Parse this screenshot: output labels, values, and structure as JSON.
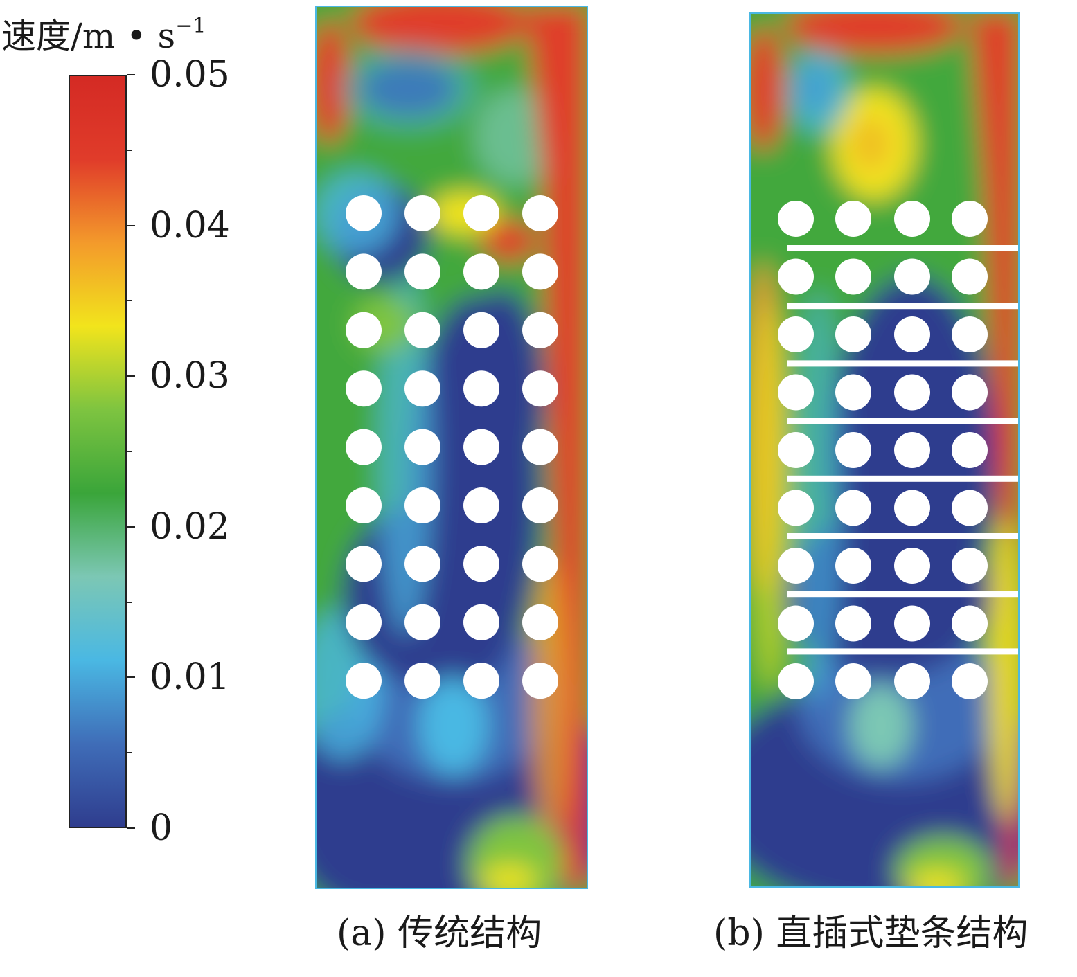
{
  "chart_data": {
    "type": "heatmap",
    "colorbar": {
      "title": "速度/m • s",
      "title_exponent": "−1",
      "min": 0,
      "max": 0.05,
      "tick_labels": [
        "0.05",
        "0.04",
        "0.03",
        "0.02",
        "0.01",
        "0"
      ],
      "tick_values": [
        0.05,
        0.04,
        0.03,
        0.02,
        0.01,
        0
      ],
      "minor_tick_values": [
        0.045,
        0.035,
        0.025,
        0.015,
        0.005
      ],
      "colors": [
        "#2f3d8e",
        "#3f6db8",
        "#4ab8e3",
        "#7cc7b4",
        "#3aa53a",
        "#7ec440",
        "#f2e41c",
        "#f39a2b",
        "#e03c2a",
        "#d42a24"
      ]
    },
    "panels": [
      {
        "caption": "(a) 传统结构",
        "tube_rows": 9,
        "tube_cols": 4,
        "spacer_strips": 0
      },
      {
        "caption": "(b) 直插式垫条结构",
        "tube_rows": 9,
        "tube_cols": 4,
        "spacer_strips": 8
      }
    ]
  }
}
